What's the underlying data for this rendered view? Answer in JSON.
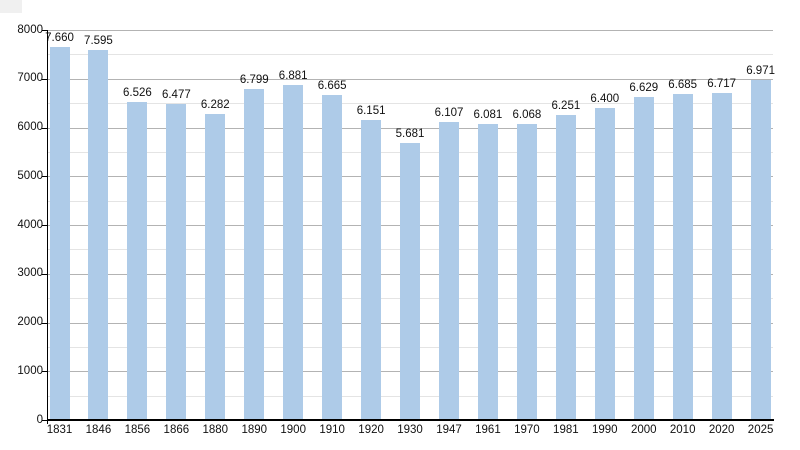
{
  "chart_data": {
    "type": "bar",
    "title": "",
    "xlabel": "",
    "ylabel": "",
    "categories": [
      "1831",
      "1846",
      "1856",
      "1866",
      "1880",
      "1890",
      "1900",
      "1910",
      "1920",
      "1930",
      "1947",
      "1961",
      "1970",
      "1981",
      "1990",
      "2000",
      "2010",
      "2020",
      "2025"
    ],
    "values": [
      7660,
      7595,
      6526,
      6477,
      6282,
      6799,
      6881,
      6665,
      6151,
      5681,
      6107,
      6081,
      6068,
      6251,
      6400,
      6629,
      6685,
      6717,
      6971
    ],
    "value_labels": [
      "7.660",
      "7.595",
      "6.526",
      "6.477",
      "6.282",
      "6.799",
      "6.881",
      "6.665",
      "6.151",
      "5.681",
      "6.107",
      "6.081",
      "6.068",
      "6.251",
      "6.400",
      "6.629",
      "6.685",
      "6.717",
      "6.971"
    ],
    "ylim": [
      0,
      8000
    ],
    "ytick_step": 1000,
    "ytick_minor_step": 500,
    "ytick_labels": [
      "0",
      "1000",
      "2000",
      "3000",
      "4000",
      "5000",
      "6000",
      "7000",
      "8000"
    ],
    "grid": "horizontal, major and minor, on",
    "legend": "none",
    "colors": {
      "bar_fill": "#aecbe8",
      "gridline_major": "#b3b3b3",
      "gridline_minor": "#e4e4e4",
      "axis": "#000000",
      "text": "#111111",
      "background": "#ffffff"
    }
  }
}
